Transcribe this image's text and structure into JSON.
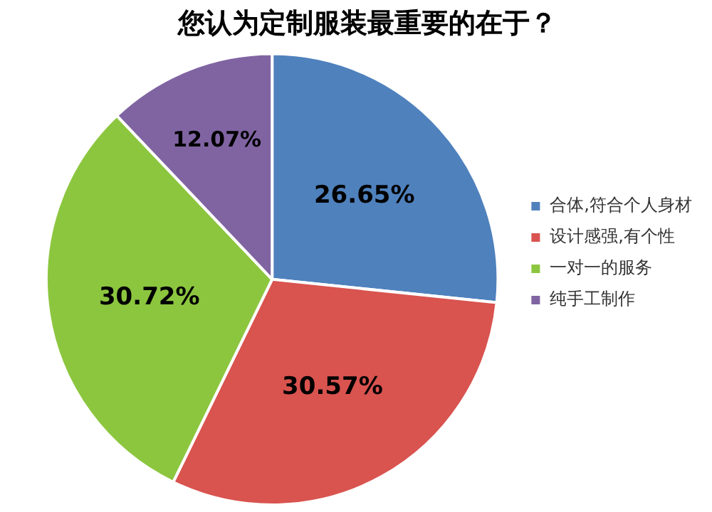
{
  "chart_data": {
    "type": "pie",
    "title": "您认为定制服装最重要的在于？",
    "categories": [
      "合体,符合个人身材",
      "设计感强,有个性",
      "一对一的服务",
      "纯手工制作"
    ],
    "values": [
      26.65,
      30.57,
      30.72,
      12.07
    ],
    "colors": [
      "#4f81bd",
      "#d9534f",
      "#8cc63f",
      "#8064a2"
    ],
    "value_labels": [
      "26.65%",
      "30.57%",
      "30.72%",
      "12.07%"
    ],
    "legend": "right"
  }
}
